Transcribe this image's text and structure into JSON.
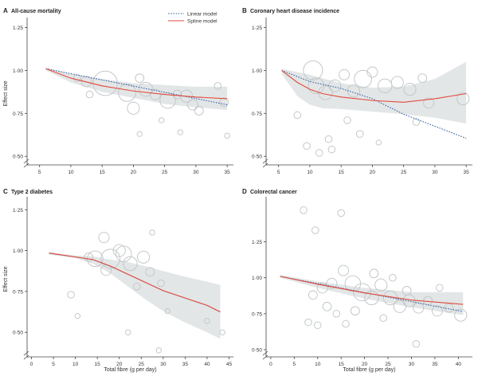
{
  "chart_data": [
    {
      "type": "scatter",
      "panel": "A",
      "title": "All-cause mortality",
      "xlabel": "",
      "ylabel": "Effect size",
      "xlim": [
        3,
        36
      ],
      "ylim": [
        0.45,
        1.28
      ],
      "xticks": [
        5,
        10,
        15,
        20,
        25,
        30,
        35
      ],
      "yticks": [
        0.5,
        0.75,
        1.0,
        1.25
      ],
      "ytick_labels": [
        "0·50",
        "0·75",
        "1·00",
        "1·25"
      ],
      "legend": {
        "position": "top-right",
        "entries": [
          "Linear model",
          "Spline model"
        ]
      },
      "series": [
        {
          "name": "Linear model",
          "style": "dotted",
          "color": "#3a66a8",
          "x": [
            6,
            35
          ],
          "y": [
            1.01,
            0.8
          ]
        },
        {
          "name": "Spline model",
          "style": "solid",
          "color": "#e24a3c",
          "x": [
            6,
            10,
            15,
            20,
            25,
            30,
            35
          ],
          "y": [
            1.01,
            0.955,
            0.91,
            0.88,
            0.86,
            0.845,
            0.835
          ]
        }
      ],
      "band": {
        "x": [
          6,
          10,
          15,
          20,
          25,
          30,
          35
        ],
        "lower": [
          1.0,
          0.93,
          0.875,
          0.84,
          0.805,
          0.785,
          0.77
        ],
        "upper": [
          1.015,
          0.98,
          0.95,
          0.925,
          0.915,
          0.905,
          0.905
        ]
      },
      "points": [
        {
          "x": 12.5,
          "y": 0.935,
          "w": 5
        },
        {
          "x": 15.5,
          "y": 0.925,
          "w": 13
        },
        {
          "x": 19,
          "y": 0.87,
          "w": 9
        },
        {
          "x": 21,
          "y": 0.955,
          "w": 4
        },
        {
          "x": 20,
          "y": 0.78,
          "w": 6
        },
        {
          "x": 22,
          "y": 0.89,
          "w": 7
        },
        {
          "x": 23.5,
          "y": 0.86,
          "w": 5
        },
        {
          "x": 25.5,
          "y": 0.825,
          "w": 8
        },
        {
          "x": 27,
          "y": 0.86,
          "w": 4
        },
        {
          "x": 28.5,
          "y": 0.85,
          "w": 6
        },
        {
          "x": 29.5,
          "y": 0.8,
          "w": 5
        },
        {
          "x": 30.5,
          "y": 0.765,
          "w": 4
        },
        {
          "x": 33.5,
          "y": 0.91,
          "w": 3
        },
        {
          "x": 34.5,
          "y": 0.815,
          "w": 4
        },
        {
          "x": 24.5,
          "y": 0.71,
          "w": 2
        },
        {
          "x": 21,
          "y": 0.63,
          "w": 2
        },
        {
          "x": 27.5,
          "y": 0.64,
          "w": 2
        },
        {
          "x": 35,
          "y": 0.62,
          "w": 2
        },
        {
          "x": 11,
          "y": 0.955,
          "w": 3
        },
        {
          "x": 13,
          "y": 0.86,
          "w": 3
        }
      ]
    },
    {
      "type": "scatter",
      "panel": "B",
      "title": "Coronary heart disease incidence",
      "xlabel": "",
      "ylabel": "",
      "xlim": [
        3,
        36
      ],
      "ylim": [
        0.45,
        1.28
      ],
      "xticks": [
        5,
        10,
        15,
        20,
        25,
        30,
        35
      ],
      "yticks": [
        0.5,
        0.75,
        1.0,
        1.25
      ],
      "ytick_labels": [
        "0·50",
        "0·75",
        "1·00",
        "1·25"
      ],
      "series": [
        {
          "name": "Linear model",
          "style": "dotted",
          "color": "#3a66a8",
          "x": [
            5.5,
            10,
            15,
            20,
            25,
            30,
            35
          ],
          "y": [
            1.0,
            0.935,
            0.895,
            0.835,
            0.745,
            0.675,
            0.605
          ]
        },
        {
          "name": "Spline model",
          "style": "solid",
          "color": "#e24a3c",
          "x": [
            5.5,
            8,
            10,
            12,
            15,
            20,
            25,
            30,
            35
          ],
          "y": [
            1.0,
            0.93,
            0.89,
            0.865,
            0.845,
            0.825,
            0.815,
            0.835,
            0.865
          ]
        }
      ],
      "band": {
        "x": [
          5.5,
          8,
          10,
          12,
          15,
          20,
          25,
          30,
          35
        ],
        "lower": [
          0.98,
          0.85,
          0.8,
          0.78,
          0.775,
          0.76,
          0.745,
          0.725,
          0.69
        ],
        "upper": [
          1.01,
          0.99,
          0.975,
          0.955,
          0.925,
          0.9,
          0.905,
          0.95,
          1.05
        ]
      },
      "points": [
        {
          "x": 10.5,
          "y": 1.0,
          "w": 10
        },
        {
          "x": 11,
          "y": 0.91,
          "w": 8
        },
        {
          "x": 12.5,
          "y": 0.87,
          "w": 7
        },
        {
          "x": 14,
          "y": 0.91,
          "w": 6
        },
        {
          "x": 15.5,
          "y": 0.975,
          "w": 5
        },
        {
          "x": 17,
          "y": 0.88,
          "w": 6
        },
        {
          "x": 18.5,
          "y": 0.95,
          "w": 9
        },
        {
          "x": 20,
          "y": 0.99,
          "w": 5
        },
        {
          "x": 22,
          "y": 0.91,
          "w": 7
        },
        {
          "x": 24,
          "y": 0.93,
          "w": 6
        },
        {
          "x": 26,
          "y": 0.89,
          "w": 6
        },
        {
          "x": 28,
          "y": 0.955,
          "w": 4
        },
        {
          "x": 29,
          "y": 0.81,
          "w": 5
        },
        {
          "x": 34.5,
          "y": 0.835,
          "w": 6
        },
        {
          "x": 16,
          "y": 0.71,
          "w": 3
        },
        {
          "x": 18,
          "y": 0.63,
          "w": 3
        },
        {
          "x": 11.5,
          "y": 0.52,
          "w": 3
        },
        {
          "x": 13.5,
          "y": 0.54,
          "w": 3
        },
        {
          "x": 9.5,
          "y": 0.56,
          "w": 3
        },
        {
          "x": 27,
          "y": 0.7,
          "w": 3
        },
        {
          "x": 8,
          "y": 0.74,
          "w": 3
        },
        {
          "x": 21,
          "y": 0.58,
          "w": 2
        },
        {
          "x": 13,
          "y": 0.6,
          "w": 3
        }
      ]
    },
    {
      "type": "scatter",
      "panel": "C",
      "title": "Type 2 diabetes",
      "xlabel": "Total fibre (g per day)",
      "ylabel": "Effect size",
      "xlim": [
        -1,
        46
      ],
      "ylim": [
        0.35,
        1.3
      ],
      "xticks": [
        0,
        5,
        10,
        15,
        20,
        25,
        30,
        35,
        40,
        45
      ],
      "yticks": [
        0.5,
        0.75,
        1.0,
        1.25
      ],
      "ytick_labels": [
        "0·50",
        "0·75",
        "1·00",
        "1·25"
      ],
      "series": [
        {
          "name": "Linear model",
          "style": "dotted",
          "color": "#3a66a8",
          "x": [
            4,
            14,
            18,
            22,
            26,
            30,
            35,
            40,
            43
          ],
          "y": [
            0.985,
            0.945,
            0.905,
            0.855,
            0.805,
            0.755,
            0.71,
            0.665,
            0.625
          ]
        },
        {
          "name": "Spline model",
          "style": "solid",
          "color": "#e24a3c",
          "x": [
            4,
            14,
            18,
            22,
            26,
            30,
            35,
            40,
            43
          ],
          "y": [
            0.985,
            0.945,
            0.905,
            0.855,
            0.805,
            0.755,
            0.71,
            0.665,
            0.625
          ]
        }
      ],
      "band": {
        "x": [
          4,
          10,
          14,
          18,
          22,
          26,
          30,
          35,
          40,
          43
        ],
        "lower": [
          0.975,
          0.955,
          0.92,
          0.86,
          0.78,
          0.7,
          0.63,
          0.56,
          0.5,
          0.46
        ],
        "upper": [
          0.99,
          0.97,
          0.965,
          0.945,
          0.93,
          0.905,
          0.875,
          0.84,
          0.81,
          0.79
        ]
      },
      "points": [
        {
          "x": 14.5,
          "y": 0.95,
          "w": 8
        },
        {
          "x": 18,
          "y": 0.95,
          "w": 10
        },
        {
          "x": 16.5,
          "y": 1.08,
          "w": 5
        },
        {
          "x": 20,
          "y": 1.0,
          "w": 6
        },
        {
          "x": 22.5,
          "y": 0.92,
          "w": 7
        },
        {
          "x": 25.5,
          "y": 0.96,
          "w": 6
        },
        {
          "x": 27,
          "y": 0.87,
          "w": 4
        },
        {
          "x": 21,
          "y": 0.98,
          "w": 8
        },
        {
          "x": 17,
          "y": 0.88,
          "w": 5
        },
        {
          "x": 13,
          "y": 0.96,
          "w": 4
        },
        {
          "x": 24,
          "y": 0.78,
          "w": 3
        },
        {
          "x": 29.5,
          "y": 0.8,
          "w": 3
        },
        {
          "x": 9,
          "y": 0.73,
          "w": 3
        },
        {
          "x": 10.5,
          "y": 0.6,
          "w": 2
        },
        {
          "x": 31,
          "y": 0.63,
          "w": 2
        },
        {
          "x": 27.5,
          "y": 1.11,
          "w": 2
        },
        {
          "x": 29,
          "y": 0.39,
          "w": 2
        },
        {
          "x": 43.5,
          "y": 0.5,
          "w": 2
        },
        {
          "x": 40,
          "y": 0.57,
          "w": 2
        },
        {
          "x": 22,
          "y": 0.5,
          "w": 2
        }
      ]
    },
    {
      "type": "scatter",
      "panel": "D",
      "title": "Colorectal cancer",
      "xlabel": "Total fibre (g per day)",
      "ylabel": "",
      "xlim": [
        -1,
        43
      ],
      "ylim": [
        0.45,
        1.53
      ],
      "xticks": [
        0,
        5,
        10,
        15,
        20,
        25,
        30,
        35,
        40
      ],
      "yticks": [
        0.5,
        0.75,
        1.0,
        1.25
      ],
      "ytick_labels": [
        "0·50",
        "0·75",
        "1·00",
        "1·25"
      ],
      "series": [
        {
          "name": "Linear model",
          "style": "dotted",
          "color": "#3a66a8",
          "x": [
            2,
            41
          ],
          "y": [
            1.01,
            0.765
          ]
        },
        {
          "name": "Spline model",
          "style": "solid",
          "color": "#e24a3c",
          "x": [
            2,
            10,
            20,
            30,
            41
          ],
          "y": [
            1.01,
            0.955,
            0.895,
            0.845,
            0.815
          ]
        }
      ],
      "band": {
        "x": [
          2,
          10,
          20,
          30,
          41
        ],
        "lower": [
          1.0,
          0.93,
          0.855,
          0.795,
          0.74
        ],
        "upper": [
          1.02,
          0.975,
          0.93,
          0.9,
          0.9
        ]
      },
      "points": [
        {
          "x": 7,
          "y": 1.47,
          "w": 3
        },
        {
          "x": 15,
          "y": 1.45,
          "w": 3
        },
        {
          "x": 9.5,
          "y": 1.33,
          "w": 3
        },
        {
          "x": 15.5,
          "y": 1.05,
          "w": 5
        },
        {
          "x": 17.5,
          "y": 0.96,
          "w": 8
        },
        {
          "x": 19.5,
          "y": 0.9,
          "w": 9
        },
        {
          "x": 21.5,
          "y": 0.86,
          "w": 7
        },
        {
          "x": 23.5,
          "y": 0.95,
          "w": 6
        },
        {
          "x": 25.5,
          "y": 0.86,
          "w": 7
        },
        {
          "x": 27.5,
          "y": 0.8,
          "w": 6
        },
        {
          "x": 29.5,
          "y": 0.84,
          "w": 6
        },
        {
          "x": 31.5,
          "y": 0.79,
          "w": 5
        },
        {
          "x": 33.5,
          "y": 0.84,
          "w": 4
        },
        {
          "x": 35.5,
          "y": 0.77,
          "w": 5
        },
        {
          "x": 38,
          "y": 0.79,
          "w": 4
        },
        {
          "x": 40.5,
          "y": 0.74,
          "w": 6
        },
        {
          "x": 11,
          "y": 0.93,
          "w": 5
        },
        {
          "x": 13,
          "y": 0.96,
          "w": 5
        },
        {
          "x": 9,
          "y": 0.88,
          "w": 4
        },
        {
          "x": 12,
          "y": 0.8,
          "w": 4
        },
        {
          "x": 14,
          "y": 0.75,
          "w": 3
        },
        {
          "x": 10,
          "y": 0.67,
          "w": 3
        },
        {
          "x": 8,
          "y": 0.69,
          "w": 3
        },
        {
          "x": 16,
          "y": 0.68,
          "w": 3
        },
        {
          "x": 18,
          "y": 0.77,
          "w": 4
        },
        {
          "x": 22,
          "y": 1.03,
          "w": 4
        },
        {
          "x": 26,
          "y": 1.0,
          "w": 3
        },
        {
          "x": 29,
          "y": 0.91,
          "w": 4
        },
        {
          "x": 31,
          "y": 0.54,
          "w": 3
        },
        {
          "x": 24,
          "y": 0.72,
          "w": 3
        },
        {
          "x": 36,
          "y": 0.93,
          "w": 3
        }
      ]
    }
  ]
}
